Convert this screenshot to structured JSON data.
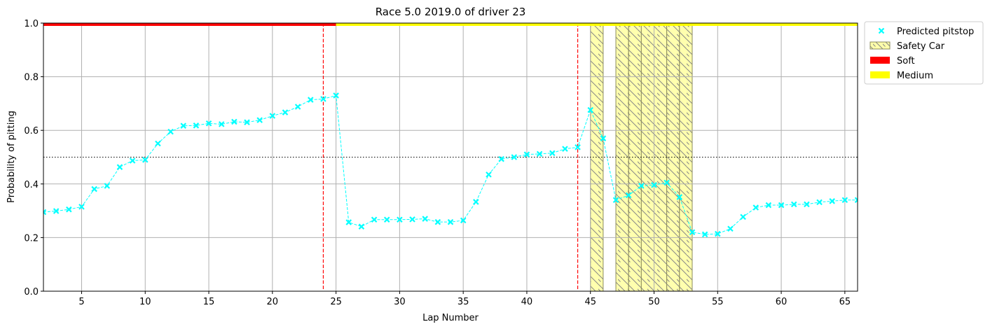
{
  "chart_data": {
    "type": "scatter",
    "title": "Race 5.0 2019.0 of driver 23",
    "xlabel": "Lap Number",
    "ylabel": "Probability of pitting",
    "xlim": [
      2,
      66
    ],
    "ylim": [
      0,
      1
    ],
    "xticks": [
      5,
      10,
      15,
      20,
      25,
      30,
      35,
      40,
      45,
      50,
      55,
      60,
      65
    ],
    "yticks": [
      "0.0",
      "0.2",
      "0.4",
      "0.6",
      "0.8",
      "1.0"
    ],
    "threshold": 0.5,
    "grid": true,
    "legend_placement": "outside-top-right",
    "series": [
      {
        "name": "Predicted pitstop",
        "color": "#00ffff",
        "marker": "x",
        "x": [
          2,
          3,
          4,
          5,
          6,
          7,
          8,
          9,
          10,
          11,
          12,
          13,
          14,
          15,
          16,
          17,
          18,
          19,
          20,
          21,
          22,
          23,
          24,
          25,
          26,
          27,
          28,
          29,
          30,
          31,
          32,
          33,
          34,
          35,
          36,
          37,
          38,
          39,
          40,
          41,
          42,
          43,
          44,
          45,
          46,
          47,
          48,
          49,
          50,
          51,
          52,
          53,
          54,
          55,
          56,
          57,
          58,
          59,
          60,
          61,
          62,
          63,
          64,
          65,
          66
        ],
        "y": [
          0.295,
          0.299,
          0.305,
          0.315,
          0.381,
          0.393,
          0.463,
          0.487,
          0.49,
          0.551,
          0.595,
          0.617,
          0.618,
          0.626,
          0.623,
          0.632,
          0.63,
          0.638,
          0.654,
          0.667,
          0.688,
          0.714,
          0.717,
          0.73,
          0.257,
          0.241,
          0.267,
          0.267,
          0.267,
          0.268,
          0.27,
          0.258,
          0.258,
          0.264,
          0.333,
          0.435,
          0.493,
          0.5,
          0.51,
          0.512,
          0.515,
          0.531,
          0.537,
          0.676,
          0.57,
          0.34,
          0.358,
          0.393,
          0.396,
          0.405,
          0.351,
          0.22,
          0.212,
          0.214,
          0.233,
          0.277,
          0.312,
          0.321,
          0.321,
          0.324,
          0.324,
          0.332,
          0.336,
          0.34,
          0.34
        ]
      }
    ],
    "pit_laps": [
      24,
      44
    ],
    "safety_car": {
      "name": "Safety Car",
      "color": "#ffffaa",
      "ranges": [
        [
          45,
          46
        ],
        [
          47,
          48
        ],
        [
          48,
          49
        ],
        [
          49,
          50
        ],
        [
          50,
          51
        ],
        [
          51,
          52
        ],
        [
          52,
          53
        ]
      ]
    },
    "tyres": [
      {
        "name": "Soft",
        "color": "#ff0000",
        "from": 2,
        "to": 25
      },
      {
        "name": "Medium",
        "color": "#ffff00",
        "from": 25,
        "to": 66
      }
    ]
  }
}
